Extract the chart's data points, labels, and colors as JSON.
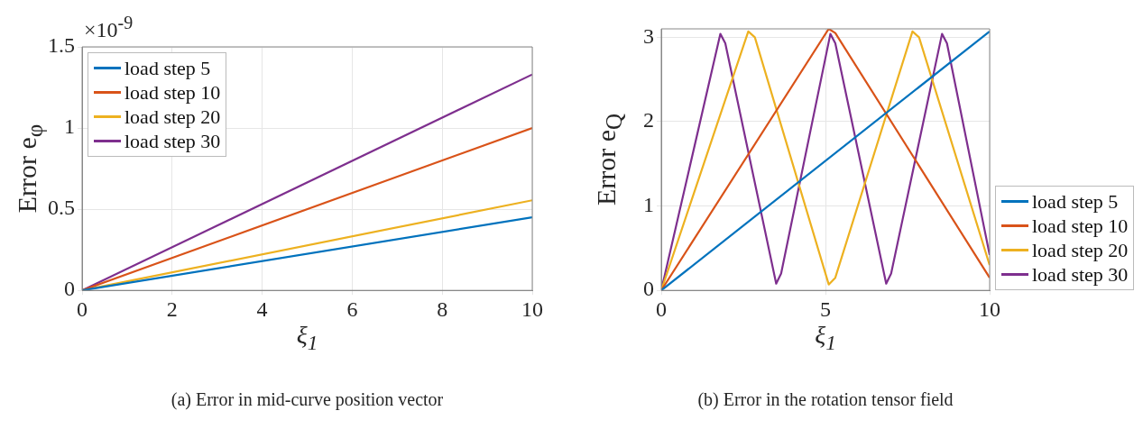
{
  "chart_data": [
    {
      "type": "line",
      "xlabel": "ξ$_{1}$",
      "ylabel": "Error e$_{φ}$",
      "xlim": [
        0,
        10
      ],
      "xticks": [
        0,
        2,
        4,
        6,
        8,
        10
      ],
      "ylim": [
        0,
        1.5
      ],
      "yticks": [
        0,
        0.5,
        1,
        1.5
      ],
      "grid": true,
      "legend": "top left",
      "series": [
        {
          "name": "load step 5",
          "color": "#0072bd",
          "x": [
            0,
            10
          ],
          "values": [
            0,
            0.45
          ]
        },
        {
          "name": "load step 10",
          "color": "#d95319",
          "x": [
            0,
            10
          ],
          "values": [
            0,
            1.0
          ]
        },
        {
          "name": "load step 20",
          "color": "#edb120",
          "x": [
            0,
            10
          ],
          "values": [
            0,
            0.555
          ]
        },
        {
          "name": "load step 30",
          "color": "#7e2f8e",
          "x": [
            0,
            10
          ],
          "values": [
            0,
            1.33
          ]
        }
      ],
      "annotations": [
        "×10$^{-9}$",
        "(a) Error in mid-curve position vector"
      ]
    },
    {
      "type": "line",
      "xlabel": "ξ$_{1}$",
      "ylabel": "Error e$_{Q}$",
      "xlim": [
        0,
        10
      ],
      "xticks": [
        0,
        5,
        10
      ],
      "ylim": [
        0,
        3.1
      ],
      "yticks": [
        0,
        1,
        2,
        3
      ],
      "grid": true,
      "legend": "right",
      "series": [
        {
          "name": "load step 5",
          "color": "#0072bd",
          "x": [
            0,
            10
          ],
          "values": [
            0,
            3.07
          ]
        },
        {
          "name": "load step 10",
          "color": "#d95319",
          "x": [
            0,
            5.1,
            5.3,
            10
          ],
          "values": [
            0,
            3.1,
            3.05,
            0.15
          ]
        },
        {
          "name": "load step 20",
          "color": "#edb120",
          "x": [
            0,
            2.65,
            2.85,
            5.1,
            5.3,
            7.65,
            7.85,
            10
          ],
          "values": [
            0,
            3.07,
            3.0,
            0.07,
            0.15,
            3.07,
            3.0,
            0.3
          ]
        },
        {
          "name": "load step 30",
          "color": "#7e2f8e",
          "x": [
            0,
            1.8,
            1.95,
            3.5,
            3.65,
            5.15,
            5.3,
            6.85,
            7.0,
            8.55,
            8.7,
            10
          ],
          "values": [
            0,
            3.04,
            2.93,
            0.08,
            0.2,
            3.04,
            2.93,
            0.08,
            0.2,
            3.04,
            2.93,
            0.42
          ]
        }
      ],
      "annotations": [
        "(b) Error in the rotation tensor field"
      ]
    }
  ]
}
